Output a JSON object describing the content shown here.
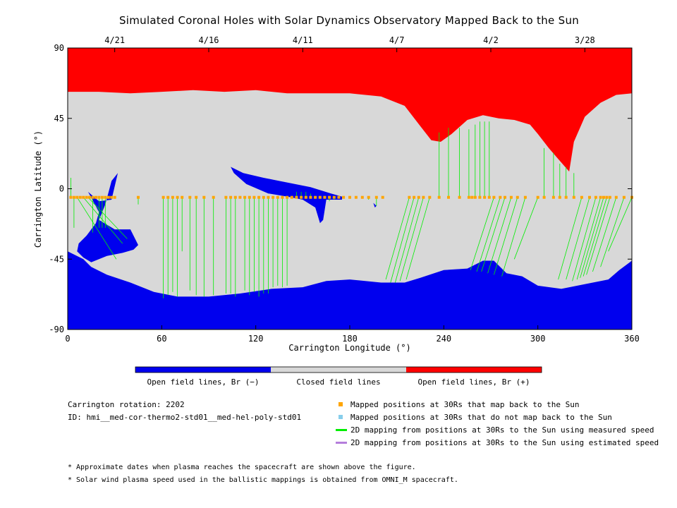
{
  "chart_data": {
    "type": "map",
    "title": "Simulated Coronal Holes with Solar Dynamics Observatory Mapped Back to the Sun",
    "xlabel": "Carrington Longitude (°)",
    "ylabel": "Carrington Latitude (°)",
    "xlim": [
      0,
      360
    ],
    "ylim": [
      -90,
      90
    ],
    "xticks": [
      0,
      60,
      120,
      180,
      240,
      300,
      360
    ],
    "yticks": [
      90,
      45,
      0,
      -45,
      -90
    ],
    "top_axis_dates": [
      {
        "label": "4/21",
        "lon": 30
      },
      {
        "label": "4/16",
        "lon": 90
      },
      {
        "label": "4/11",
        "lon": 150
      },
      {
        "label": "4/7",
        "lon": 210
      },
      {
        "label": "4/2",
        "lon": 270
      },
      {
        "label": "3/28",
        "lon": 330
      }
    ],
    "colorbar": [
      {
        "label": "Open field lines, Br (−)",
        "color": "#0000ee"
      },
      {
        "label": "Closed field lines",
        "color": "#d8d8d8"
      },
      {
        "label": "Open field lines, Br (+)",
        "color": "#ff0000"
      }
    ],
    "north_boundary": [
      [
        0,
        62
      ],
      [
        20,
        62
      ],
      [
        40,
        61
      ],
      [
        60,
        62
      ],
      [
        80,
        63
      ],
      [
        100,
        62
      ],
      [
        120,
        63
      ],
      [
        140,
        61
      ],
      [
        160,
        61
      ],
      [
        180,
        61
      ],
      [
        200,
        59
      ],
      [
        215,
        53
      ],
      [
        225,
        40
      ],
      [
        232,
        31
      ],
      [
        238,
        30
      ],
      [
        245,
        35
      ],
      [
        255,
        44
      ],
      [
        265,
        47
      ],
      [
        275,
        45
      ],
      [
        285,
        44
      ],
      [
        295,
        41
      ],
      [
        300,
        35
      ],
      [
        307,
        26
      ],
      [
        313,
        19
      ],
      [
        320,
        11
      ],
      [
        323,
        30
      ],
      [
        330,
        46
      ],
      [
        340,
        55
      ],
      [
        350,
        60
      ],
      [
        360,
        61
      ]
    ],
    "south_boundary": [
      [
        0,
        -40
      ],
      [
        10,
        -45
      ],
      [
        15,
        -50
      ],
      [
        25,
        -55
      ],
      [
        40,
        -60
      ],
      [
        55,
        -66
      ],
      [
        70,
        -69
      ],
      [
        90,
        -69
      ],
      [
        110,
        -67
      ],
      [
        130,
        -64
      ],
      [
        150,
        -63
      ],
      [
        165,
        -59
      ],
      [
        180,
        -58
      ],
      [
        200,
        -60
      ],
      [
        215,
        -60
      ],
      [
        225,
        -57
      ],
      [
        240,
        -52
      ],
      [
        255,
        -51
      ],
      [
        265,
        -46
      ],
      [
        272,
        -46
      ],
      [
        280,
        -54
      ],
      [
        290,
        -56
      ],
      [
        300,
        -62
      ],
      [
        315,
        -64
      ],
      [
        330,
        -61
      ],
      [
        345,
        -58
      ],
      [
        352,
        -52
      ],
      [
        360,
        -46
      ]
    ],
    "coronal_holes": [
      {
        "polarity": "negative",
        "name": "low-latitude hole near 30",
        "boundary": [
          [
            13,
            -2
          ],
          [
            20,
            -8
          ],
          [
            28,
            -7
          ],
          [
            32,
            10
          ],
          [
            28,
            5
          ],
          [
            24,
            -10
          ],
          [
            20,
            -20
          ],
          [
            30,
            -26
          ],
          [
            40,
            -26
          ],
          [
            45,
            -36
          ],
          [
            42,
            -39
          ],
          [
            35,
            -41
          ],
          [
            25,
            -43
          ],
          [
            15,
            -47
          ],
          [
            10,
            -44
          ],
          [
            6,
            -40
          ],
          [
            7,
            -35
          ],
          [
            12,
            -30
          ],
          [
            18,
            -22
          ],
          [
            20,
            -15
          ]
        ]
      },
      {
        "polarity": "negative",
        "name": "hole near 105-175",
        "boundary": [
          [
            104,
            14
          ],
          [
            112,
            10
          ],
          [
            125,
            7
          ],
          [
            140,
            4
          ],
          [
            155,
            1
          ],
          [
            168,
            -3
          ],
          [
            175,
            -5
          ],
          [
            175,
            -7
          ],
          [
            165,
            -7
          ],
          [
            163,
            -20
          ],
          [
            161,
            -22
          ],
          [
            158,
            -12
          ],
          [
            150,
            -7
          ],
          [
            140,
            -5
          ],
          [
            128,
            -3
          ],
          [
            114,
            3
          ],
          [
            106,
            10
          ]
        ]
      },
      {
        "polarity": "negative",
        "name": "small hole near 195",
        "boundary": [
          [
            195,
            -9
          ],
          [
            197,
            -11
          ],
          [
            196,
            -12
          ]
        ]
      }
    ],
    "mapped_points_lat": -5.5,
    "mapped_points_lon": [
      2,
      4,
      6,
      8,
      10,
      12,
      14,
      16,
      18,
      20,
      22,
      24,
      26,
      28,
      30,
      45,
      61,
      64,
      67,
      70,
      73,
      78,
      82,
      87,
      93,
      101,
      104,
      107,
      110,
      113,
      116,
      119,
      122,
      125,
      128,
      131,
      134,
      137,
      140,
      143,
      146,
      149,
      152,
      155,
      158,
      161,
      164,
      167,
      170,
      173,
      176,
      180,
      184,
      188,
      192,
      197,
      201,
      218,
      221,
      224,
      227,
      231,
      237,
      243,
      250,
      256,
      258,
      260,
      263,
      266,
      269,
      272,
      276,
      279,
      283,
      287,
      292,
      300,
      304,
      310,
      314,
      318,
      323,
      328,
      333,
      337,
      340,
      342,
      344,
      346,
      350,
      355,
      360
    ],
    "mappings": [
      [
        2,
        7
      ],
      [
        4,
        -25
      ],
      [
        6,
        -45
      ],
      [
        10,
        -35
      ],
      [
        13,
        -32
      ],
      [
        16,
        -28
      ],
      [
        20,
        -25
      ],
      [
        22,
        -25
      ],
      [
        24,
        -25
      ],
      [
        45,
        -10
      ],
      [
        61,
        -70
      ],
      [
        64,
        -68
      ],
      [
        67,
        -66
      ],
      [
        70,
        -69
      ],
      [
        73,
        -40
      ],
      [
        78,
        -65
      ],
      [
        82,
        -68
      ],
      [
        87,
        -69
      ],
      [
        93,
        -68
      ],
      [
        101,
        -67
      ],
      [
        104,
        -67
      ],
      [
        107,
        -69
      ],
      [
        113,
        -65
      ],
      [
        116,
        -68
      ],
      [
        119,
        -66
      ],
      [
        122,
        -69
      ],
      [
        125,
        -67
      ],
      [
        128,
        -67
      ],
      [
        131,
        -63
      ],
      [
        134,
        -62
      ],
      [
        137,
        -63
      ],
      [
        140,
        -62
      ],
      [
        146,
        -2
      ],
      [
        149,
        -2
      ],
      [
        152,
        -2
      ],
      [
        155,
        -3
      ],
      [
        158,
        -5
      ],
      [
        161,
        -6
      ],
      [
        164,
        -6
      ],
      [
        167,
        -8
      ],
      [
        170,
        -7
      ],
      [
        176,
        -6
      ],
      [
        192,
        -7
      ],
      [
        197,
        -11
      ],
      [
        218,
        -58
      ],
      [
        221,
        -60
      ],
      [
        224,
        -60
      ],
      [
        227,
        -59
      ],
      [
        231,
        -58
      ],
      [
        237,
        36
      ],
      [
        243,
        39
      ],
      [
        250,
        39
      ],
      [
        256,
        38
      ],
      [
        260,
        41
      ],
      [
        263,
        43
      ],
      [
        266,
        43
      ],
      [
        269,
        43
      ],
      [
        272,
        -52
      ],
      [
        276,
        -53
      ],
      [
        279,
        -53
      ],
      [
        283,
        -54
      ],
      [
        287,
        -55
      ],
      [
        292,
        -56
      ],
      [
        300,
        -45
      ],
      [
        304,
        26
      ],
      [
        310,
        23
      ],
      [
        314,
        16
      ],
      [
        318,
        14
      ],
      [
        323,
        10
      ],
      [
        328,
        -58
      ],
      [
        333,
        -58
      ],
      [
        337,
        -59
      ],
      [
        340,
        -58
      ],
      [
        342,
        -57
      ],
      [
        344,
        -56
      ],
      [
        346,
        -55
      ],
      [
        350,
        -53
      ],
      [
        355,
        -50
      ],
      [
        360,
        -40
      ]
    ]
  },
  "info": {
    "rotation": "Carrington rotation: 2202",
    "id": "ID: hmi__med-cor-thermo2-std01__med-hel-poly-std01"
  },
  "legend": [
    {
      "label": "Mapped positions at 30Rs that map back to the Sun",
      "color": "#ffa500",
      "kind": "square"
    },
    {
      "label": "Mapped positions at 30Rs that do not map back to the Sun",
      "color": "#87ceeb",
      "kind": "square"
    },
    {
      "label": "2D mapping from positions at 30Rs to the Sun using measured speed",
      "color": "#00ee00",
      "kind": "line"
    },
    {
      "label": "2D mapping from positions at 30Rs to the Sun using estimated speed",
      "color": "#b57edc",
      "kind": "line"
    }
  ],
  "notes": [
    "* Approximate dates when plasma reaches the spacecraft are shown above the figure.",
    "* Solar wind plasma speed used in the ballistic mappings is obtained from OMNI_M spacecraft."
  ],
  "colors": {
    "negative": "#0000ee",
    "closed": "#d8d8d8",
    "positive": "#ff0000",
    "point": "#ffa500",
    "mapping": "#00ee00"
  }
}
